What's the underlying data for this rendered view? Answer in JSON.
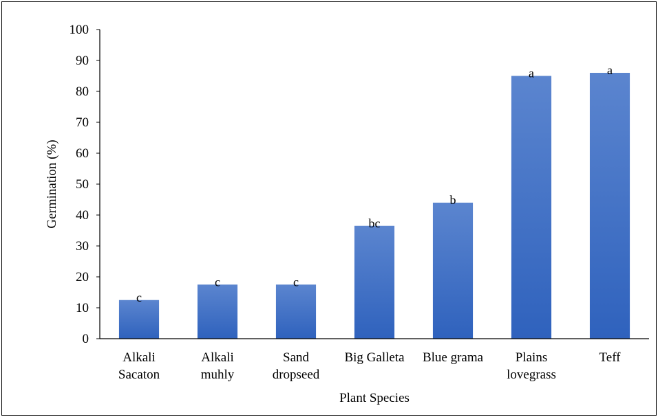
{
  "chart_data": {
    "type": "bar",
    "title": "",
    "xlabel": "Plant Species",
    "ylabel": "Germination (%)",
    "ylim": [
      0,
      100
    ],
    "yticks": [
      0,
      10,
      20,
      30,
      40,
      50,
      60,
      70,
      80,
      90,
      100
    ],
    "grid": false,
    "legend": "none",
    "categories": [
      [
        "Alkali",
        "Sacaton"
      ],
      [
        "Alkali",
        "muhly"
      ],
      [
        "Sand",
        "dropseed"
      ],
      [
        "Big Galleta"
      ],
      [
        "Blue grama"
      ],
      [
        "Plains",
        "lovegrass"
      ],
      [
        "Teff"
      ]
    ],
    "values": [
      12.5,
      17.5,
      17.5,
      36.5,
      44,
      85,
      86
    ],
    "significance_labels": [
      "c",
      "c",
      "c",
      "bc",
      "b",
      "a",
      "a"
    ],
    "bar_color_top": "#5b85cf",
    "bar_color_bottom": "#2f62bd",
    "axis_color": "#000000"
  }
}
